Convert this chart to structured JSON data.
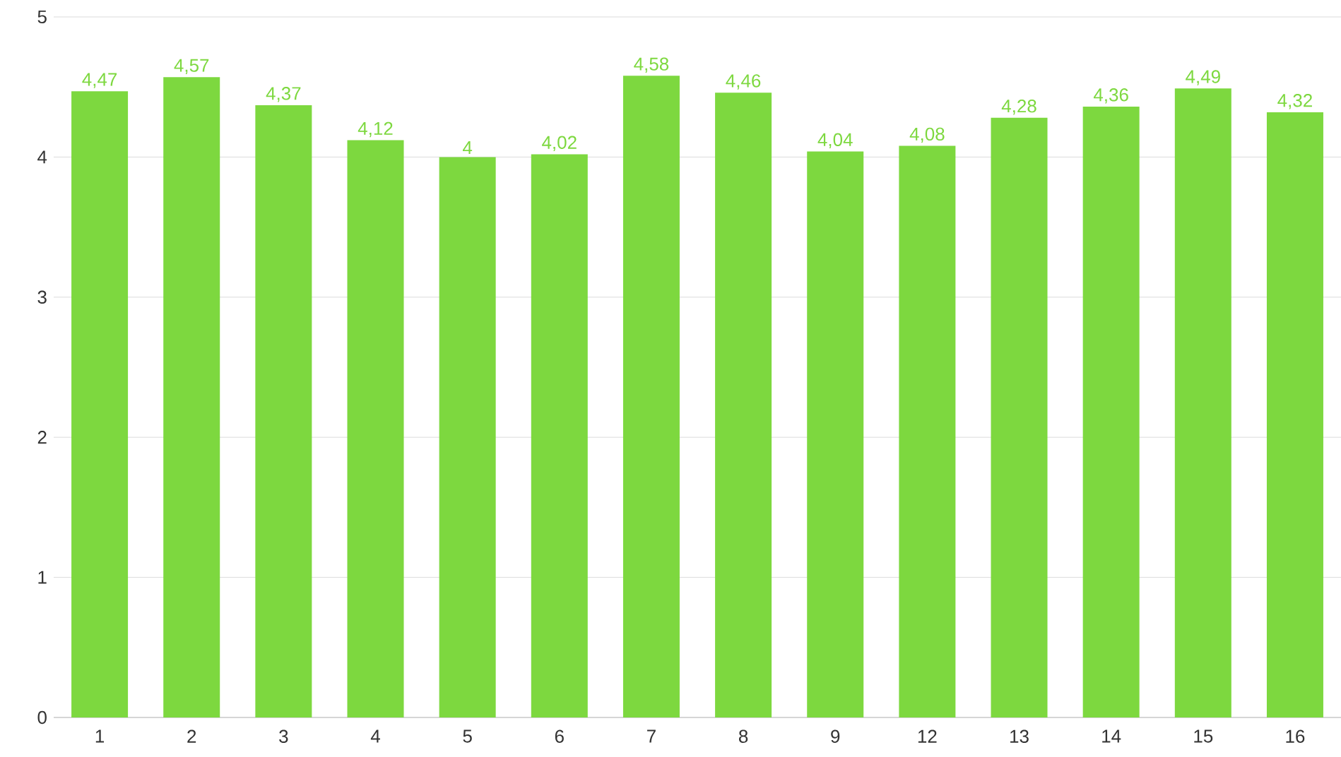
{
  "chart_data": {
    "type": "bar",
    "categories": [
      "1",
      "2",
      "3",
      "4",
      "5",
      "6",
      "7",
      "8",
      "9",
      "12",
      "13",
      "14",
      "15",
      "16"
    ],
    "values": [
      4.47,
      4.57,
      4.37,
      4.12,
      4,
      4.02,
      4.58,
      4.46,
      4.04,
      4.08,
      4.28,
      4.36,
      4.49,
      4.32
    ],
    "value_labels": [
      "4,47",
      "4,57",
      "4,37",
      "4,12",
      "4",
      "4,02",
      "4,58",
      "4,46",
      "4,04",
      "4,08",
      "4,28",
      "4,36",
      "4,49",
      "4,32"
    ],
    "color": "#7dd83f",
    "ylim": [
      0,
      5
    ],
    "yticks": [
      0,
      1,
      2,
      3,
      4,
      5
    ],
    "grid": "y"
  }
}
